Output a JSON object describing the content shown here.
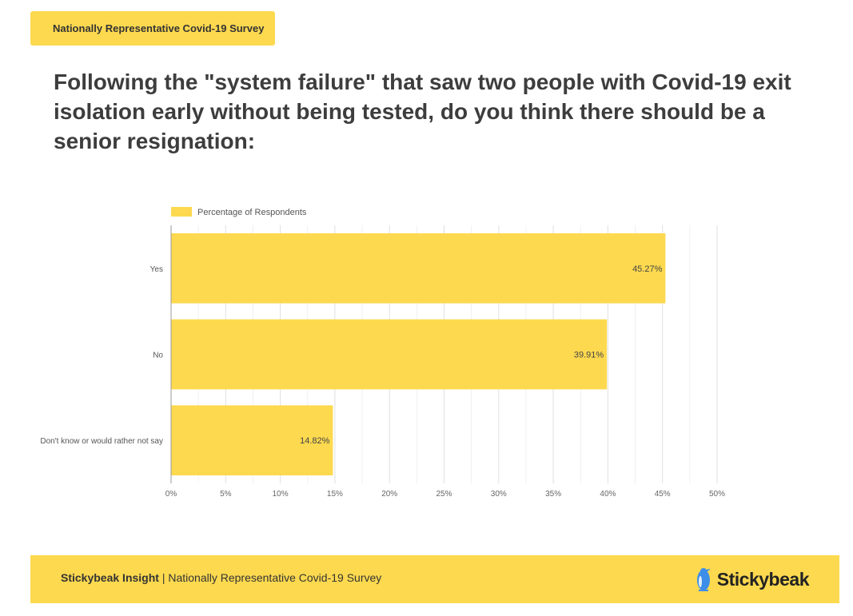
{
  "tag": "Nationally Representative Covid-19 Survey",
  "title": "Following the \"system failure\" that saw two people with Covid-19 exit isolation early without being tested, do you think there should be a senior resignation:",
  "chart_data": {
    "type": "bar",
    "orientation": "horizontal",
    "categories": [
      "Yes",
      "No",
      "Don't know or would rather not say"
    ],
    "series": [
      {
        "name": "Percentage of Respondents",
        "values": [
          45.27,
          39.91,
          14.82
        ],
        "color": "#fdd94f"
      }
    ],
    "data_labels": [
      "45.27%",
      "39.91%",
      "14.82%"
    ],
    "xlim": [
      0,
      50
    ],
    "xticks": [
      "0%",
      "5%",
      "10%",
      "15%",
      "20%",
      "25%",
      "30%",
      "35%",
      "40%",
      "45%",
      "50%"
    ],
    "grid": true,
    "legend_position": "top-left",
    "bar_color": "#fdd94f"
  },
  "footer": {
    "brand": "Stickybeak Insight",
    "separator": " | ",
    "subtitle": "Nationally Representative Covid-19 Survey",
    "logo_text": "Stickybeak",
    "logo_icon": "bird-icon"
  },
  "colors": {
    "accent": "#fdd94f",
    "title": "#3d3d3d",
    "grid": "#e0e0e0",
    "logo_blue": "#3d8ee8"
  }
}
